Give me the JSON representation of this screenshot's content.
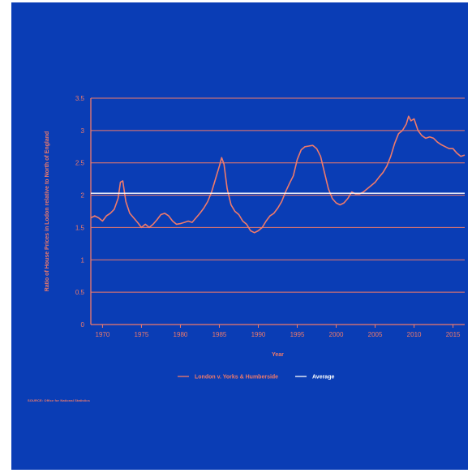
{
  "source_note": "SOURCE: Office for National Statistics",
  "colors": {
    "background": "#0a3db5",
    "series": "#f07a6a",
    "average": "#ffffff",
    "text": "#f07a6a"
  },
  "chart_data": {
    "type": "line",
    "title": "",
    "xlabel": "Year",
    "ylabel": "Ratio of House Prices in Lodon relative to North of England",
    "xlim": [
      1968.5,
      2016.5
    ],
    "ylim": [
      0,
      3.5
    ],
    "x_ticks": [
      1970,
      1975,
      1980,
      1985,
      1990,
      1995,
      2000,
      2005,
      2010,
      2015
    ],
    "y_ticks": [
      0,
      0.5,
      1,
      1.5,
      2,
      2.5,
      3,
      3.5
    ],
    "y_tick_labels": [
      "0",
      "0.5",
      "1",
      "1.5",
      "2",
      "2.5",
      "3",
      "3.5"
    ],
    "grid": "horizontal",
    "legend_position": "bottom",
    "series": [
      {
        "name": "London v. Yorks & Humberside",
        "x": [
          1968.5,
          1969,
          1969.5,
          1970,
          1970.5,
          1971,
          1971.5,
          1972,
          1972.3,
          1972.6,
          1973,
          1973.5,
          1974,
          1974.5,
          1975,
          1975.5,
          1976,
          1976.5,
          1977,
          1977.5,
          1978,
          1978.5,
          1979,
          1979.5,
          1980,
          1980.5,
          1981,
          1981.5,
          1982,
          1982.5,
          1983,
          1983.5,
          1984,
          1984.5,
          1985,
          1985.3,
          1985.6,
          1986,
          1986.5,
          1987,
          1987.5,
          1988,
          1988.5,
          1989,
          1989.5,
          1990,
          1990.5,
          1991,
          1991.5,
          1992,
          1992.5,
          1993,
          1993.5,
          1994,
          1994.5,
          1995,
          1995.5,
          1996,
          1996.5,
          1997,
          1997.5,
          1998,
          1998.5,
          1999,
          1999.5,
          2000,
          2000.5,
          2001,
          2001.5,
          2002,
          2002.5,
          2003,
          2003.5,
          2004,
          2004.5,
          2005,
          2005.5,
          2006,
          2006.5,
          2007,
          2007.5,
          2008,
          2008.5,
          2009,
          2009.3,
          2009.6,
          2010,
          2010.5,
          2011,
          2011.5,
          2012,
          2012.5,
          2013,
          2013.5,
          2014,
          2014.5,
          2015,
          2015.5,
          2016,
          2016.5
        ],
        "values": [
          1.65,
          1.68,
          1.65,
          1.6,
          1.68,
          1.72,
          1.78,
          1.95,
          2.2,
          2.22,
          1.9,
          1.72,
          1.65,
          1.58,
          1.5,
          1.55,
          1.5,
          1.55,
          1.62,
          1.7,
          1.72,
          1.68,
          1.6,
          1.55,
          1.56,
          1.58,
          1.6,
          1.58,
          1.65,
          1.72,
          1.8,
          1.9,
          2.05,
          2.25,
          2.45,
          2.58,
          2.48,
          2.1,
          1.85,
          1.75,
          1.7,
          1.6,
          1.55,
          1.45,
          1.42,
          1.45,
          1.5,
          1.6,
          1.68,
          1.72,
          1.8,
          1.9,
          2.05,
          2.18,
          2.3,
          2.55,
          2.7,
          2.75,
          2.76,
          2.77,
          2.72,
          2.6,
          2.35,
          2.1,
          1.95,
          1.88,
          1.85,
          1.88,
          1.95,
          2.05,
          2.02,
          2.02,
          2.05,
          2.1,
          2.15,
          2.2,
          2.28,
          2.35,
          2.45,
          2.6,
          2.8,
          2.95,
          3.0,
          3.1,
          3.22,
          3.15,
          3.18,
          3.0,
          2.92,
          2.88,
          2.9,
          2.88,
          2.82,
          2.78,
          2.75,
          2.72,
          2.72,
          2.65,
          2.6,
          2.62
        ]
      },
      {
        "name": "Average",
        "x": [
          1968.5,
          2016.5
        ],
        "values": [
          2.03,
          2.03
        ]
      }
    ]
  }
}
